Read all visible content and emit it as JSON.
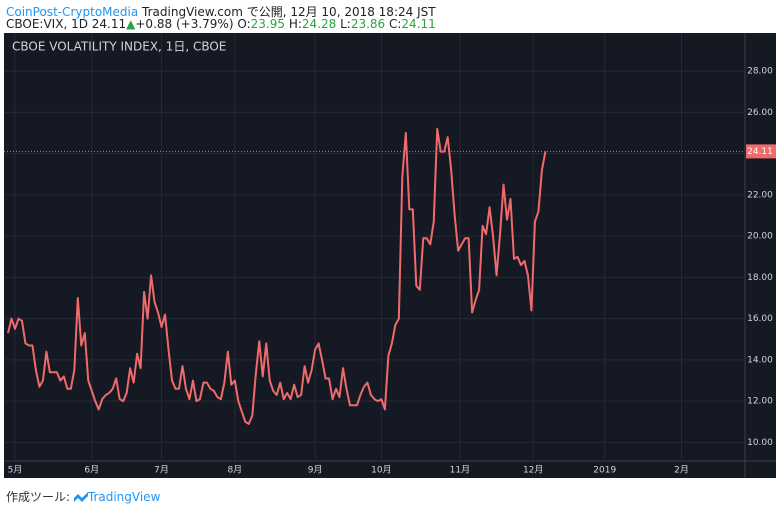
{
  "header": {
    "source": "CoinPost-CryptoMedia",
    "published": "TradingView.com で公開, 12月 10, 2018 18:24 JST",
    "symbol": "CBOE:VIX, 1D",
    "last": "24.11",
    "arrow": "▲",
    "change": "+0.88 (+3.79%)",
    "o_label": "O:",
    "o": "23.95",
    "h_label": "H:",
    "h": "24.28",
    "l_label": "L:",
    "l": "23.86",
    "c_label": "C:",
    "c": "24.11"
  },
  "chart_data": {
    "type": "line",
    "title": "CBOE VOLATILITY INDEX, 1日, CBOE",
    "series": [
      {
        "name": "CBOE:VIX",
        "color": "#ef6b6b",
        "values": [
          15.3,
          16.0,
          15.5,
          16.0,
          15.9,
          14.8,
          14.7,
          14.7,
          13.5,
          12.7,
          13.0,
          14.4,
          13.4,
          13.4,
          13.4,
          13.0,
          13.2,
          12.6,
          12.6,
          13.5,
          17.0,
          14.7,
          15.3,
          13.0,
          12.5,
          12.0,
          11.6,
          12.1,
          12.3,
          12.4,
          12.6,
          13.1,
          12.1,
          12.0,
          12.4,
          13.6,
          12.9,
          14.3,
          13.6,
          17.3,
          16.0,
          18.1,
          16.8,
          16.3,
          15.6,
          16.2,
          14.5,
          13.0,
          12.6,
          12.6,
          13.7,
          12.6,
          12.1,
          13.0,
          12.0,
          12.1,
          12.9,
          12.9,
          12.6,
          12.5,
          12.2,
          12.1,
          12.9,
          14.4,
          12.8,
          13.0,
          12.0,
          11.5,
          11.0,
          10.9,
          11.3,
          13.3,
          14.9,
          13.2,
          14.8,
          13.0,
          12.5,
          12.3,
          12.9,
          12.1,
          12.4,
          12.1,
          12.8,
          12.2,
          12.3,
          13.7,
          12.9,
          13.5,
          14.5,
          14.8,
          14.0,
          13.1,
          13.1,
          12.1,
          12.6,
          12.2,
          13.6,
          12.6,
          11.8,
          11.8,
          11.8,
          12.3,
          12.7,
          12.9,
          12.3,
          12.1,
          12.0,
          12.1,
          11.6,
          14.2,
          14.8,
          15.7,
          16.0,
          22.9,
          25.0,
          21.3,
          21.3,
          17.6,
          17.4,
          19.9,
          19.9,
          19.6,
          20.7,
          25.2,
          24.1,
          24.1,
          24.8,
          23.2,
          21.0,
          19.3,
          19.6,
          19.9,
          19.9,
          16.3,
          16.9,
          17.4,
          20.5,
          20.1,
          21.4,
          20.0,
          18.1,
          20.1,
          22.5,
          20.8,
          21.8,
          18.9,
          19.0,
          18.6,
          18.8,
          18.1,
          16.4,
          20.7,
          21.2,
          23.2,
          24.11
        ]
      }
    ],
    "ylim": [
      9.1,
      29.85
    ],
    "yticks": [
      {
        "value": 10,
        "label": "10.00"
      },
      {
        "value": 12,
        "label": "12.00"
      },
      {
        "value": 14,
        "label": "14.00"
      },
      {
        "value": 16,
        "label": "16.00"
      },
      {
        "value": 18,
        "label": "18.00"
      },
      {
        "value": 20,
        "label": "20.00"
      },
      {
        "value": 22,
        "label": "22.00"
      },
      {
        "value": 24,
        "label": "24.00"
      },
      {
        "value": 26,
        "label": "26.00"
      },
      {
        "value": 28,
        "label": "28.00"
      }
    ],
    "xlim": [
      -1.15,
      211.2
    ],
    "xticks": [
      {
        "value": 2,
        "label": "5月"
      },
      {
        "value": 24,
        "label": "6月"
      },
      {
        "value": 44,
        "label": "7月"
      },
      {
        "value": 65,
        "label": "8月"
      },
      {
        "value": 88,
        "label": "9月"
      },
      {
        "value": 107,
        "label": "10月"
      },
      {
        "value": 129.5,
        "label": "11月"
      },
      {
        "value": 150.5,
        "label": "12月"
      },
      {
        "value": 171,
        "label": "2019"
      },
      {
        "value": 193,
        "label": "2月"
      }
    ],
    "grid": true
  },
  "footer": {
    "label": "作成ツール:",
    "brand": "TradingView"
  }
}
